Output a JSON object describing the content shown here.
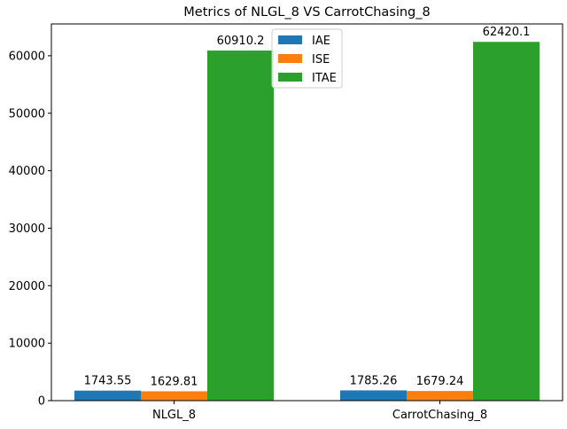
{
  "chart_data": {
    "type": "bar",
    "title": "Metrics of NLGL_8 VS CarrotChasing_8",
    "xlabel": "",
    "ylabel": "",
    "categories": [
      "NLGL_8",
      "CarrotChasing_8"
    ],
    "series": [
      {
        "name": "IAE",
        "values": [
          1743.55,
          1785.26
        ],
        "labels": [
          "1743.55",
          "1785.26"
        ],
        "color": "#1f77b4"
      },
      {
        "name": "ISE",
        "values": [
          1629.81,
          1679.24
        ],
        "labels": [
          "1629.81",
          "1679.24"
        ],
        "color": "#ff7f0e"
      },
      {
        "name": "ITAE",
        "values": [
          60910.2,
          62420.1
        ],
        "labels": [
          "60910.2",
          "62420.1"
        ],
        "color": "#2ca02c"
      }
    ],
    "ylim": [
      0,
      65541
    ],
    "yticks": [
      0,
      10000,
      20000,
      30000,
      40000,
      50000,
      60000
    ],
    "ytick_labels": [
      "0",
      "10000",
      "20000",
      "30000",
      "40000",
      "50000",
      "60000"
    ],
    "grid": false,
    "legend_position": "top-center"
  }
}
